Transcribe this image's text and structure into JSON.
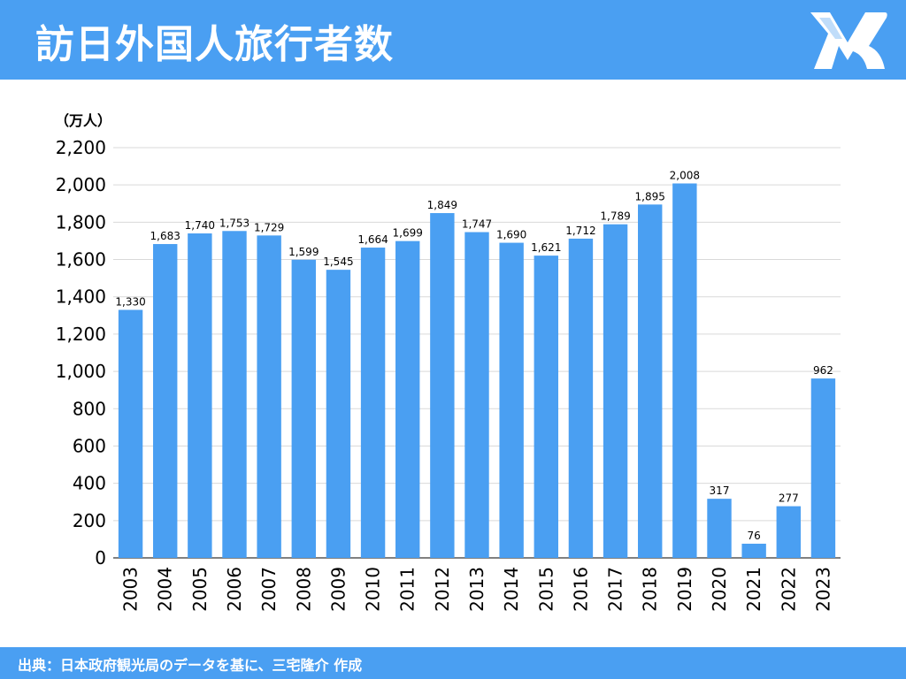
{
  "header": {
    "title": "訪日外国人旅行者数",
    "logo_icon": "mr-logo-icon"
  },
  "footer": {
    "source": "出典：日本政府観光局のデータを基に、三宅隆介 作成"
  },
  "colors": {
    "accent": "#4a9ff2",
    "bar": "#4a9ff2",
    "grid": "#d9d9d9",
    "text": "#000000"
  },
  "chart_data": {
    "type": "bar",
    "title": "訪日外国人旅行者数",
    "ylabel": "（万人）",
    "xlabel": "",
    "categories": [
      "2003",
      "2004",
      "2005",
      "2006",
      "2007",
      "2008",
      "2009",
      "2010",
      "2011",
      "2012",
      "2013",
      "2014",
      "2015",
      "2016",
      "2017",
      "2018",
      "2019",
      "2020",
      "2021",
      "2022",
      "2023"
    ],
    "values": [
      1330,
      1683,
      1740,
      1753,
      1729,
      1599,
      1545,
      1664,
      1699,
      1849,
      1747,
      1690,
      1621,
      1712,
      1789,
      1895,
      2008,
      317,
      76,
      277,
      962
    ],
    "data_labels": [
      "1,330",
      "1,683",
      "1,740",
      "1,753",
      "1,729",
      "1,599",
      "1,545",
      "1,664",
      "1,699",
      "1,849",
      "1,747",
      "1,690",
      "1,621",
      "1,712",
      "1,789",
      "1,895",
      "2,008",
      "317",
      "76",
      "277",
      "962"
    ],
    "ylim": [
      0,
      2200
    ],
    "yticks": [
      0,
      200,
      400,
      600,
      800,
      1000,
      1200,
      1400,
      1600,
      1800,
      2000,
      2200
    ],
    "ytick_labels": [
      "0",
      "200",
      "400",
      "600",
      "800",
      "1,000",
      "1,200",
      "1,400",
      "1,600",
      "1,800",
      "2,000",
      "2,200"
    ],
    "grid": true,
    "legend": "none"
  }
}
